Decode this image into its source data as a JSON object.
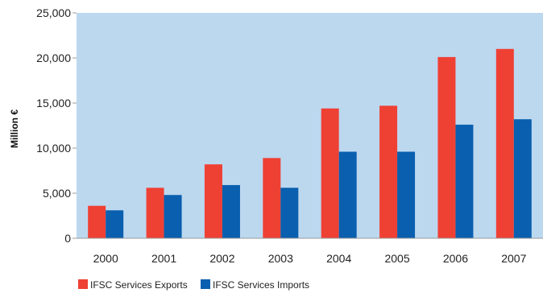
{
  "chart_data": {
    "type": "bar",
    "categories": [
      "2000",
      "2001",
      "2002",
      "2003",
      "2004",
      "2005",
      "2006",
      "2007"
    ],
    "series": [
      {
        "name": "IFSC Services Exports",
        "color": "#ef4034",
        "values": [
          3600,
          5600,
          8200,
          8900,
          14400,
          14700,
          20100,
          21000
        ]
      },
      {
        "name": "IFSC Services Imports",
        "color": "#0a5faf",
        "values": [
          3100,
          4800,
          5900,
          5600,
          9600,
          9600,
          12600,
          13200
        ]
      }
    ],
    "title": "",
    "xlabel": "",
    "ylabel": "Million €",
    "ylim": [
      0,
      25000
    ],
    "yticks": [
      0,
      5000,
      10000,
      15000,
      20000,
      25000
    ],
    "ytick_labels": [
      "0",
      "5,000",
      "10,000",
      "15,000",
      "20,000",
      "25,000"
    ],
    "grid": false,
    "plot_background": "#bcd8ef",
    "legend": "bottom-left"
  }
}
